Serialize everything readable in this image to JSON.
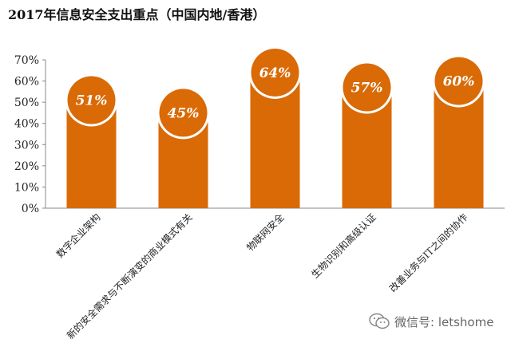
{
  "header": {
    "title": "2017年信息安全支出重点（中国内地/香港）"
  },
  "chart_data": {
    "type": "bar",
    "title": "2017年信息安全支出重点（中国内地/香港）",
    "categories": [
      "数字企业架构",
      "新的安全需求与不断演变的商业模式有关",
      "物联网安全",
      "生物识别和高级认证",
      "改善业务与IT之间的协作"
    ],
    "values": [
      51,
      45,
      64,
      57,
      60
    ],
    "value_labels": [
      "51%",
      "45%",
      "64%",
      "57%",
      "60%"
    ],
    "y_ticks": [
      "0%",
      "10%",
      "20%",
      "30%",
      "40%",
      "50%",
      "60%",
      "70%"
    ],
    "ylim": [
      0,
      70
    ],
    "grid": false,
    "legend": "none",
    "colors": {
      "bar": "#D96A06",
      "label_text": "#FFFFFF",
      "label_ring": "#FFFFFF"
    }
  },
  "watermark": {
    "text": "微信号: letshome",
    "icon": "wechat-icon"
  }
}
